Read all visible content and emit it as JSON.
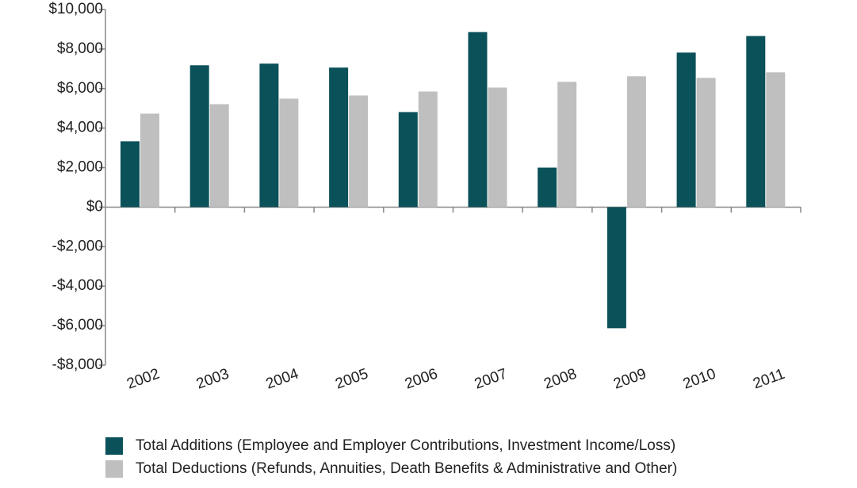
{
  "chart_data": {
    "type": "bar",
    "categories": [
      "2002",
      "2003",
      "2004",
      "2005",
      "2006",
      "2007",
      "2008",
      "2009",
      "2010",
      "2011"
    ],
    "series": [
      {
        "name": "Total Additions (Employee and Employer Contributions, Investment Income/Loss)",
        "color": "#0b5159",
        "values": [
          3330,
          7180,
          7260,
          7060,
          4810,
          8860,
          2000,
          -6130,
          7820,
          8660
        ]
      },
      {
        "name": "Total Deductions (Refunds, Annuities, Death Benefits & Administrative and Other)",
        "color": "#bfbfbf",
        "values": [
          4730,
          5210,
          5490,
          5650,
          5850,
          6050,
          6340,
          6620,
          6540,
          6820
        ]
      }
    ],
    "ylim": [
      -8000,
      10000
    ],
    "yticks": [
      {
        "value": -8000,
        "label": "-$8,000"
      },
      {
        "value": -6000,
        "label": "-$6,000"
      },
      {
        "value": -4000,
        "label": "-$4,000"
      },
      {
        "value": -2000,
        "label": "-$2,000"
      },
      {
        "value": 0,
        "label": "$0"
      },
      {
        "value": 2000,
        "label": "$2,000"
      },
      {
        "value": 4000,
        "label": "$4,000"
      },
      {
        "value": 6000,
        "label": "$6,000"
      },
      {
        "value": 8000,
        "label": "$8,000"
      },
      {
        "value": 10000,
        "label": "$10,000"
      }
    ]
  }
}
